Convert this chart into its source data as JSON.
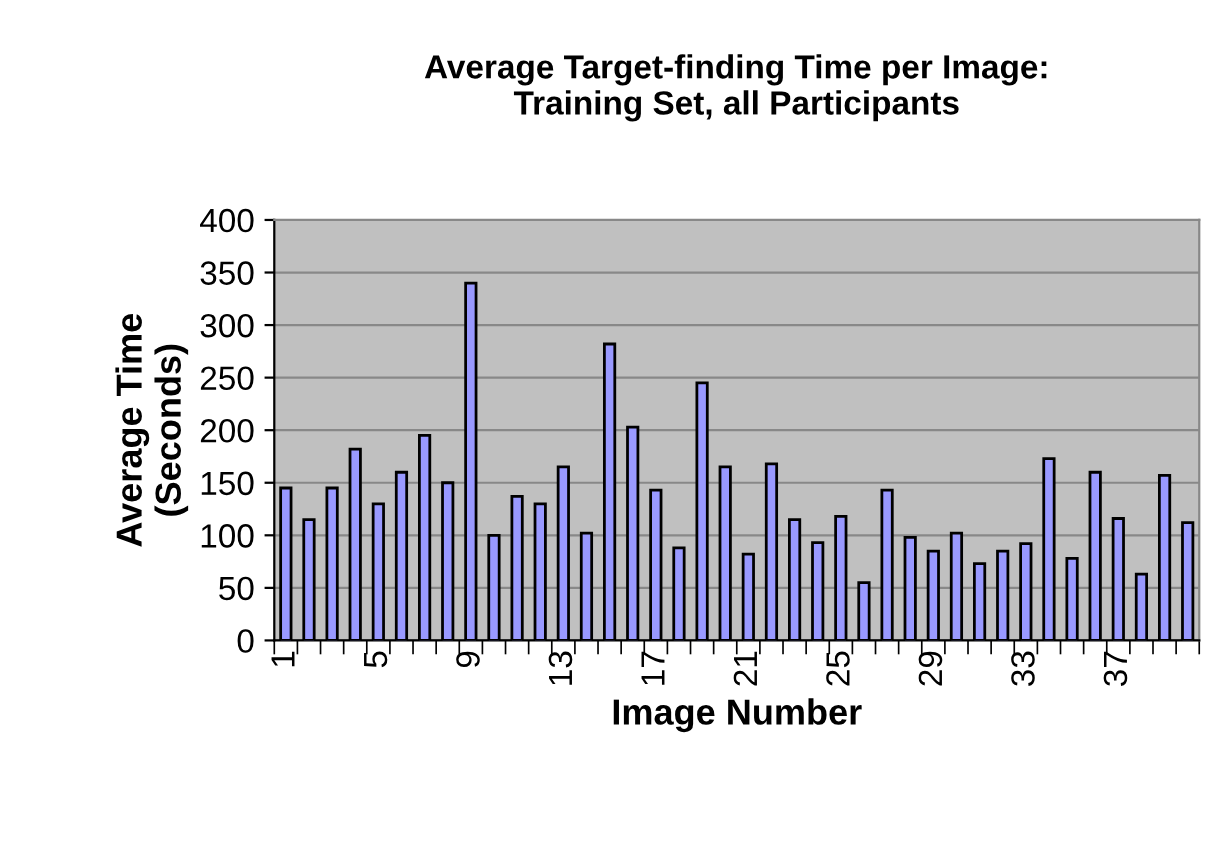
{
  "chart_data": {
    "type": "bar",
    "title": "Average Target-finding Time per Image:\nTraining Set, all Participants",
    "xlabel": "Image Number",
    "ylabel": "Average Time\n(Seconds)",
    "categories": [
      "1",
      null,
      null,
      null,
      "5",
      null,
      null,
      null,
      "9",
      null,
      null,
      null,
      "13",
      null,
      null,
      null,
      "17",
      null,
      null,
      null,
      "21",
      null,
      null,
      null,
      "25",
      null,
      null,
      null,
      "29",
      null,
      null,
      null,
      "33",
      null,
      null,
      null,
      "37",
      null,
      null,
      null
    ],
    "series": [
      {
        "color": "#9999ff",
        "values": [
          145,
          115,
          145,
          182,
          130,
          160,
          195,
          150,
          340,
          100,
          137,
          130,
          165,
          102,
          282,
          203,
          143,
          88,
          245,
          165,
          82,
          168,
          115,
          93,
          118,
          55,
          143,
          98,
          85,
          102,
          73,
          85,
          92,
          173,
          78,
          160,
          116,
          63,
          157,
          112
        ]
      }
    ],
    "ylim": [
      0,
      400
    ],
    "yticks": [
      0,
      50,
      100,
      150,
      200,
      250,
      300,
      350,
      400
    ],
    "grid": "y",
    "legend": false
  }
}
